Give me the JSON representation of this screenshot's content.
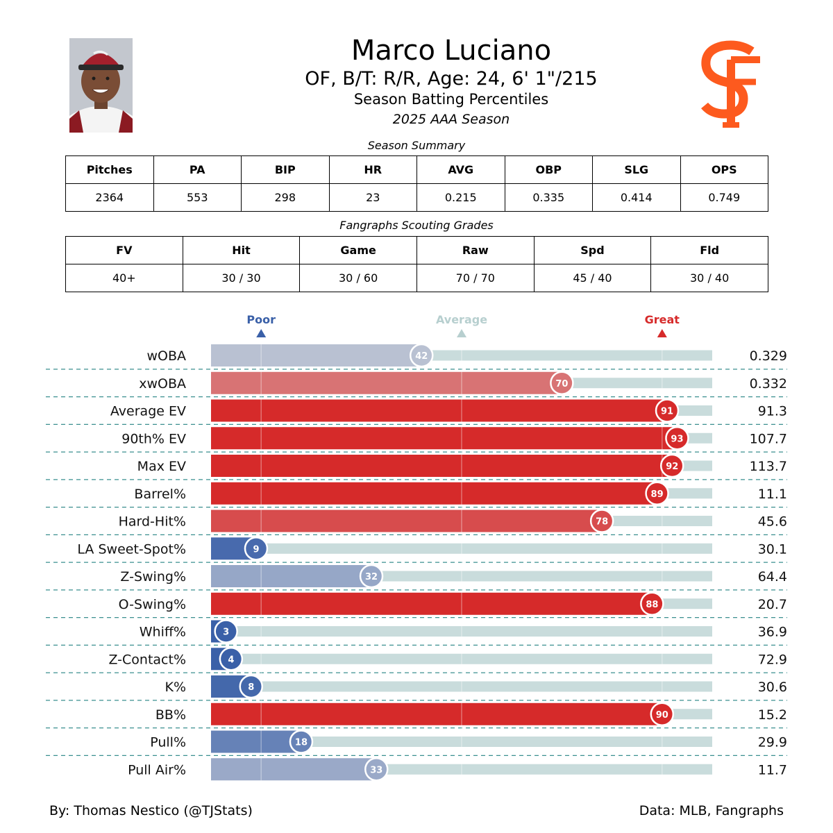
{
  "header": {
    "name": "Marco Luciano",
    "bio": "OF, B/T: R/R, Age: 24, 6' 1\"/215",
    "subtitle": "Season Batting Percentiles",
    "season": "2025 AAA Season"
  },
  "season_summary": {
    "caption": "Season Summary",
    "headers": [
      "Pitches",
      "PA",
      "BIP",
      "HR",
      "AVG",
      "OBP",
      "SLG",
      "OPS"
    ],
    "values": [
      "2364",
      "553",
      "298",
      "23",
      "0.215",
      "0.335",
      "0.414",
      "0.749"
    ]
  },
  "scouting": {
    "caption": "Fangraphs Scouting Grades",
    "headers": [
      "FV",
      "Hit",
      "Game",
      "Raw",
      "Spd",
      "Fld"
    ],
    "values": [
      "40+",
      "30 / 30",
      "30 / 60",
      "70 / 70",
      "45 / 40",
      "30 / 40"
    ]
  },
  "chart_data": {
    "type": "bar",
    "orientation": "horizontal",
    "xlim": [
      0,
      100
    ],
    "reference_markers": [
      {
        "label": "Poor",
        "value": 10,
        "color": "#3a60a8"
      },
      {
        "label": "Average",
        "value": 50,
        "color": "#b7cfcf"
      },
      {
        "label": "Great",
        "value": 90,
        "color": "#d62a2a"
      }
    ],
    "categories": [
      "wOBA",
      "xwOBA",
      "Average EV",
      "90th% EV",
      "Max EV",
      "Barrel%",
      "Hard-Hit%",
      "LA Sweet-Spot%",
      "Z-Swing%",
      "O-Swing%",
      "Whiff%",
      "Z-Contact%",
      "K%",
      "BB%",
      "Pull%",
      "Pull Air%"
    ],
    "percentiles": [
      42,
      70,
      91,
      93,
      92,
      89,
      78,
      9,
      32,
      88,
      3,
      4,
      8,
      90,
      18,
      33
    ],
    "stat_values": [
      "0.329",
      "0.332",
      "91.3",
      "107.7",
      "113.7",
      "11.1",
      "45.6",
      "30.1",
      "64.4",
      "20.7",
      "36.9",
      "72.9",
      "30.6",
      "15.2",
      "29.9",
      "11.7"
    ]
  },
  "footer": {
    "credit": "By: Thomas Nestico (@TJStats)",
    "source": "Data: MLB, Fangraphs"
  },
  "colors": {
    "track": "#c9dcdc",
    "divider": "#3a8f8f",
    "poor": "#3a60a8",
    "great": "#d62a2a",
    "logo_orange": "#fd5a1e"
  }
}
